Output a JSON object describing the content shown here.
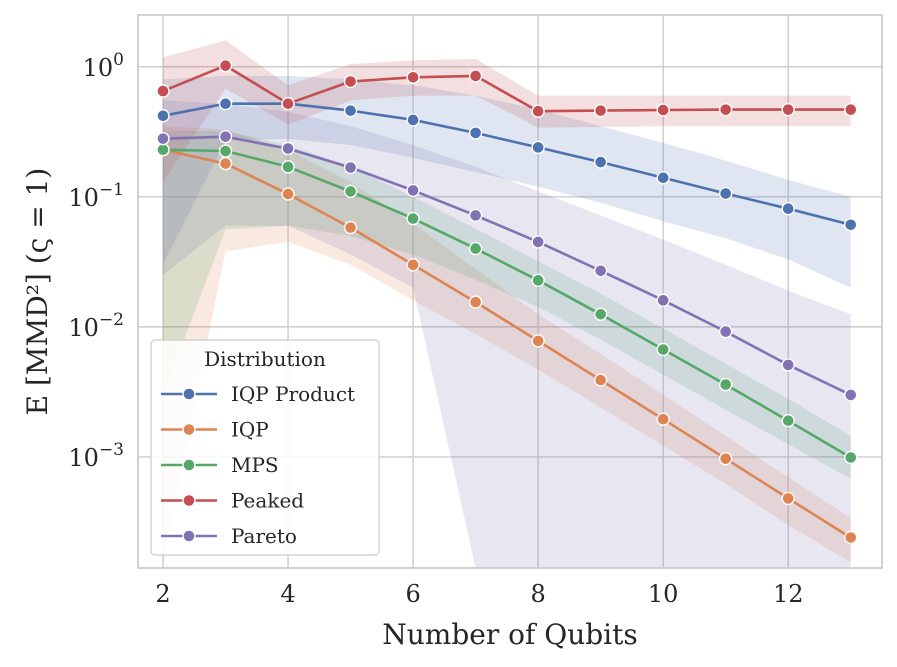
{
  "chart_data": {
    "type": "line",
    "title": "",
    "xlabel": "Number of Qubits",
    "ylabel": "E [MMD²] (ς = 1)",
    "yscale": "log",
    "xlim": [
      1.6,
      13.5
    ],
    "ylim": [
      0.00014,
      2.5
    ],
    "xticks": [
      2,
      4,
      6,
      8,
      10,
      12
    ],
    "xtick_labels": [
      "2",
      "4",
      "6",
      "8",
      "10",
      "12"
    ],
    "yticks": [
      0.001,
      0.01,
      0.1,
      1
    ],
    "ytick_labels": [
      {
        "base": "10",
        "exp": "−3"
      },
      {
        "base": "10",
        "exp": "−2"
      },
      {
        "base": "10",
        "exp": "−1"
      },
      {
        "base": "10",
        "exp": "0"
      }
    ],
    "grid": true,
    "legend": {
      "title": "Distribution",
      "position": "lower-left"
    },
    "x": [
      2,
      3,
      4,
      5,
      6,
      7,
      8,
      9,
      10,
      11,
      12,
      13
    ],
    "series": [
      {
        "name": "IQP Product",
        "color": "#4c72b0",
        "values": [
          0.42,
          0.52,
          0.52,
          0.46,
          0.39,
          0.31,
          0.24,
          0.185,
          0.14,
          0.106,
          0.081,
          0.061
        ],
        "lower": [
          0.03,
          0.27,
          0.28,
          0.25,
          0.2,
          0.155,
          0.12,
          0.09,
          0.065,
          0.048,
          0.033,
          0.02
        ],
        "upper": [
          0.8,
          0.85,
          0.85,
          0.8,
          0.72,
          0.6,
          0.47,
          0.35,
          0.26,
          0.19,
          0.135,
          0.1
        ]
      },
      {
        "name": "IQP",
        "color": "#dd8452",
        "values": [
          0.23,
          0.18,
          0.105,
          0.058,
          0.03,
          0.0155,
          0.0078,
          0.0039,
          0.00195,
          0.00097,
          0.00048,
          0.00024
        ],
        "lower": [
          0.00016,
          0.038,
          0.045,
          0.03,
          0.016,
          0.0088,
          0.0047,
          0.0024,
          0.00122,
          0.00062,
          0.0003,
          0.000155
        ],
        "upper": [
          0.35,
          0.33,
          0.23,
          0.13,
          0.062,
          0.028,
          0.0125,
          0.0062,
          0.003,
          0.00145,
          0.0007,
          0.00034
        ]
      },
      {
        "name": "MPS",
        "color": "#55a868",
        "values": [
          0.23,
          0.225,
          0.17,
          0.11,
          0.068,
          0.04,
          0.0228,
          0.0125,
          0.0067,
          0.0036,
          0.0019,
          0.00099
        ],
        "lower": [
          0.003,
          0.056,
          0.06,
          0.05,
          0.036,
          0.023,
          0.0142,
          0.008,
          0.0043,
          0.0023,
          0.00125,
          0.00068
        ],
        "upper": [
          0.32,
          0.32,
          0.25,
          0.17,
          0.1,
          0.057,
          0.032,
          0.018,
          0.0097,
          0.0052,
          0.0028,
          0.00145
        ]
      },
      {
        "name": "Peaked",
        "color": "#c44e52",
        "values": [
          0.65,
          1.02,
          0.52,
          0.77,
          0.83,
          0.85,
          0.455,
          0.46,
          0.465,
          0.468,
          0.468,
          0.468
        ],
        "lower": [
          0.13,
          0.68,
          0.36,
          0.55,
          0.6,
          0.6,
          0.34,
          0.345,
          0.348,
          0.35,
          0.35,
          0.35
        ],
        "upper": [
          1.18,
          1.6,
          0.72,
          1.05,
          1.12,
          1.15,
          0.6,
          0.6,
          0.6,
          0.6,
          0.6,
          0.6
        ]
      },
      {
        "name": "Pareto",
        "color": "#8172b3",
        "values": [
          0.28,
          0.29,
          0.235,
          0.168,
          0.112,
          0.072,
          0.045,
          0.027,
          0.016,
          0.0092,
          0.0051,
          0.003
        ],
        "lower": [
          0.025,
          0.06,
          0.06,
          0.036,
          0.02,
          0.00014,
          0.00014,
          0.00014,
          0.00014,
          0.00014,
          0.00014,
          0.00014
        ],
        "upper": [
          0.55,
          0.52,
          0.45,
          0.35,
          0.25,
          0.17,
          0.11,
          0.072,
          0.047,
          0.03,
          0.019,
          0.0125
        ]
      }
    ]
  }
}
